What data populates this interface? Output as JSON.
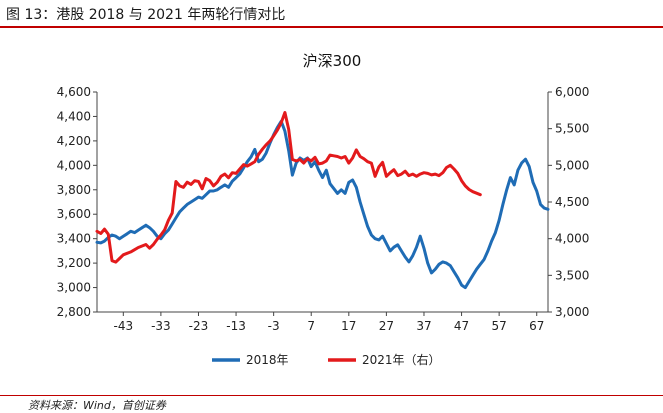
{
  "figure": {
    "title": "图 13：港股 2018 与 2021 年两轮行情对比",
    "source": "资料来源：Wind，首创证券"
  },
  "chart_data": {
    "type": "line",
    "title": "沪深300",
    "xlabel": "",
    "ylabel": "",
    "x_ticks": [
      -43,
      -33,
      -23,
      -13,
      -3,
      7,
      17,
      27,
      37,
      47,
      57,
      67
    ],
    "xlim": [
      -50,
      70
    ],
    "y_left": {
      "ticks": [
        2800,
        3000,
        3200,
        3400,
        3600,
        3800,
        4000,
        4200,
        4400,
        4600
      ],
      "labels": [
        "2,800",
        "3,000",
        "3,200",
        "3,400",
        "3,600",
        "3,800",
        "4,000",
        "4,200",
        "4,400",
        "4,600"
      ],
      "lim": [
        2800,
        4600
      ]
    },
    "y_right": {
      "ticks": [
        3000,
        3500,
        4000,
        4500,
        5000,
        5500,
        6000
      ],
      "labels": [
        "3,000",
        "3,500",
        "4,000",
        "4,500",
        "5,000",
        "5,500",
        "6,000"
      ],
      "lim": [
        3000,
        6000
      ]
    },
    "grid": false,
    "legend_position": "bottom-center",
    "series": [
      {
        "name": "2018年",
        "axis": "left",
        "color": "#1f6cb5",
        "points": [
          [
            -50,
            3370
          ],
          [
            -49,
            3365
          ],
          [
            -48,
            3380
          ],
          [
            -47,
            3410
          ],
          [
            -46,
            3430
          ],
          [
            -45,
            3420
          ],
          [
            -44,
            3400
          ],
          [
            -43,
            3420
          ],
          [
            -42,
            3440
          ],
          [
            -41,
            3460
          ],
          [
            -40,
            3450
          ],
          [
            -39,
            3470
          ],
          [
            -38,
            3490
          ],
          [
            -37,
            3510
          ],
          [
            -36,
            3490
          ],
          [
            -35,
            3460
          ],
          [
            -34,
            3420
          ],
          [
            -33,
            3400
          ],
          [
            -32,
            3440
          ],
          [
            -31,
            3470
          ],
          [
            -30,
            3520
          ],
          [
            -29,
            3570
          ],
          [
            -28,
            3620
          ],
          [
            -27,
            3650
          ],
          [
            -26,
            3680
          ],
          [
            -25,
            3700
          ],
          [
            -24,
            3720
          ],
          [
            -23,
            3740
          ],
          [
            -22,
            3730
          ],
          [
            -21,
            3760
          ],
          [
            -20,
            3790
          ],
          [
            -19,
            3790
          ],
          [
            -18,
            3800
          ],
          [
            -17,
            3820
          ],
          [
            -16,
            3840
          ],
          [
            -15,
            3820
          ],
          [
            -14,
            3870
          ],
          [
            -13,
            3900
          ],
          [
            -12,
            3930
          ],
          [
            -11,
            3980
          ],
          [
            -10,
            4030
          ],
          [
            -9,
            4070
          ],
          [
            -8,
            4130
          ],
          [
            -7,
            4030
          ],
          [
            -6,
            4050
          ],
          [
            -5,
            4100
          ],
          [
            -4,
            4180
          ],
          [
            -3,
            4250
          ],
          [
            -2,
            4310
          ],
          [
            -1,
            4360
          ],
          [
            0,
            4280
          ],
          [
            1,
            4120
          ],
          [
            2,
            3920
          ],
          [
            3,
            4020
          ],
          [
            4,
            4060
          ],
          [
            5,
            4040
          ],
          [
            6,
            4060
          ],
          [
            7,
            3990
          ],
          [
            8,
            4030
          ],
          [
            9,
            3960
          ],
          [
            10,
            3900
          ],
          [
            11,
            3960
          ],
          [
            12,
            3850
          ],
          [
            13,
            3810
          ],
          [
            14,
            3770
          ],
          [
            15,
            3800
          ],
          [
            16,
            3770
          ],
          [
            17,
            3860
          ],
          [
            18,
            3880
          ],
          [
            19,
            3820
          ],
          [
            20,
            3700
          ],
          [
            21,
            3600
          ],
          [
            22,
            3500
          ],
          [
            23,
            3430
          ],
          [
            24,
            3400
          ],
          [
            25,
            3390
          ],
          [
            26,
            3420
          ],
          [
            27,
            3360
          ],
          [
            28,
            3300
          ],
          [
            29,
            3330
          ],
          [
            30,
            3350
          ],
          [
            31,
            3300
          ],
          [
            32,
            3250
          ],
          [
            33,
            3210
          ],
          [
            34,
            3260
          ],
          [
            35,
            3330
          ],
          [
            36,
            3420
          ],
          [
            37,
            3320
          ],
          [
            38,
            3200
          ],
          [
            39,
            3120
          ],
          [
            40,
            3150
          ],
          [
            41,
            3190
          ],
          [
            42,
            3210
          ],
          [
            43,
            3200
          ],
          [
            44,
            3180
          ],
          [
            45,
            3130
          ],
          [
            46,
            3080
          ],
          [
            47,
            3020
          ],
          [
            48,
            3000
          ],
          [
            49,
            3050
          ],
          [
            50,
            3100
          ],
          [
            51,
            3150
          ],
          [
            52,
            3190
          ],
          [
            53,
            3230
          ],
          [
            54,
            3300
          ],
          [
            55,
            3380
          ],
          [
            56,
            3450
          ],
          [
            57,
            3550
          ],
          [
            58,
            3680
          ],
          [
            59,
            3800
          ],
          [
            60,
            3900
          ],
          [
            61,
            3840
          ],
          [
            62,
            3960
          ],
          [
            63,
            4020
          ],
          [
            64,
            4050
          ],
          [
            65,
            3990
          ],
          [
            66,
            3860
          ],
          [
            67,
            3790
          ],
          [
            68,
            3680
          ],
          [
            69,
            3650
          ],
          [
            70,
            3640
          ]
        ]
      },
      {
        "name": "2021年（右）",
        "axis": "right",
        "color": "#e31a1c",
        "points": [
          [
            -50,
            4100
          ],
          [
            -49,
            4070
          ],
          [
            -48,
            4130
          ],
          [
            -47,
            4060
          ],
          [
            -46,
            3700
          ],
          [
            -45,
            3680
          ],
          [
            -44,
            3730
          ],
          [
            -43,
            3780
          ],
          [
            -42,
            3800
          ],
          [
            -41,
            3820
          ],
          [
            -40,
            3850
          ],
          [
            -39,
            3880
          ],
          [
            -38,
            3900
          ],
          [
            -37,
            3920
          ],
          [
            -36,
            3870
          ],
          [
            -35,
            3920
          ],
          [
            -34,
            3990
          ],
          [
            -33,
            4050
          ],
          [
            -32,
            4120
          ],
          [
            -31,
            4250
          ],
          [
            -30,
            4350
          ],
          [
            -29,
            4780
          ],
          [
            -28,
            4720
          ],
          [
            -27,
            4700
          ],
          [
            -26,
            4770
          ],
          [
            -25,
            4740
          ],
          [
            -24,
            4790
          ],
          [
            -23,
            4780
          ],
          [
            -22,
            4680
          ],
          [
            -21,
            4820
          ],
          [
            -20,
            4790
          ],
          [
            -19,
            4720
          ],
          [
            -18,
            4770
          ],
          [
            -17,
            4850
          ],
          [
            -16,
            4880
          ],
          [
            -15,
            4830
          ],
          [
            -14,
            4900
          ],
          [
            -13,
            4890
          ],
          [
            -12,
            4950
          ],
          [
            -11,
            5010
          ],
          [
            -10,
            4990
          ],
          [
            -9,
            5020
          ],
          [
            -8,
            5050
          ],
          [
            -7,
            5150
          ],
          [
            -6,
            5220
          ],
          [
            -5,
            5280
          ],
          [
            -4,
            5330
          ],
          [
            -3,
            5400
          ],
          [
            -2,
            5480
          ],
          [
            -1,
            5580
          ],
          [
            0,
            5720
          ],
          [
            1,
            5490
          ],
          [
            2,
            5080
          ],
          [
            3,
            5060
          ],
          [
            4,
            5080
          ],
          [
            5,
            5030
          ],
          [
            6,
            5090
          ],
          [
            7,
            5060
          ],
          [
            8,
            5110
          ],
          [
            9,
            5020
          ],
          [
            10,
            5030
          ],
          [
            11,
            5060
          ],
          [
            12,
            5140
          ],
          [
            13,
            5130
          ],
          [
            14,
            5120
          ],
          [
            15,
            5100
          ],
          [
            16,
            5120
          ],
          [
            17,
            5030
          ],
          [
            18,
            5100
          ],
          [
            19,
            5210
          ],
          [
            20,
            5120
          ],
          [
            21,
            5090
          ],
          [
            22,
            5050
          ],
          [
            23,
            5030
          ],
          [
            24,
            4850
          ],
          [
            25,
            4980
          ],
          [
            26,
            5040
          ],
          [
            27,
            4850
          ],
          [
            28,
            4900
          ],
          [
            29,
            4940
          ],
          [
            30,
            4860
          ],
          [
            31,
            4880
          ],
          [
            32,
            4920
          ],
          [
            33,
            4860
          ],
          [
            34,
            4880
          ],
          [
            35,
            4850
          ],
          [
            36,
            4880
          ],
          [
            37,
            4900
          ],
          [
            38,
            4890
          ],
          [
            39,
            4870
          ],
          [
            40,
            4880
          ],
          [
            41,
            4860
          ],
          [
            42,
            4900
          ],
          [
            43,
            4970
          ],
          [
            44,
            5000
          ],
          [
            45,
            4950
          ],
          [
            46,
            4890
          ],
          [
            47,
            4790
          ],
          [
            48,
            4720
          ],
          [
            49,
            4670
          ],
          [
            50,
            4640
          ],
          [
            51,
            4620
          ],
          [
            52,
            4600
          ]
        ]
      }
    ]
  }
}
